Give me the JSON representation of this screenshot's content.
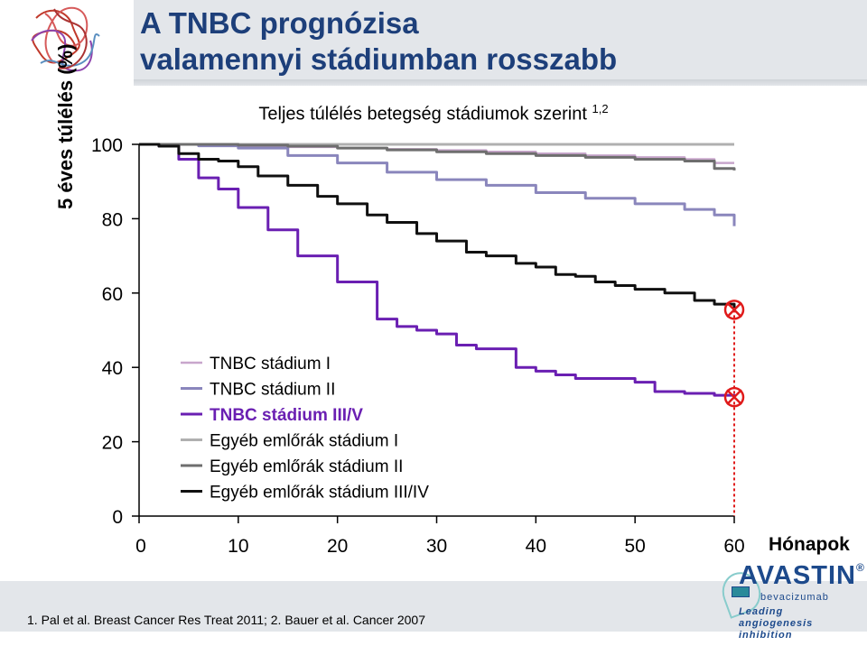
{
  "header": {
    "title_line1": "A TNBC prognózisa",
    "title_line2": "valamennyi stádiumban rosszabb"
  },
  "chart_data": {
    "type": "line",
    "title": "Teljes túlélés betegség stádiumok szerint",
    "title_sup": "1,2",
    "ylabel": "5 éves túlélés (%)",
    "xlabel": "Hónapok",
    "xlim": [
      0,
      60
    ],
    "ylim": [
      0,
      100
    ],
    "xticks": [
      0,
      10,
      20,
      30,
      40,
      50,
      60
    ],
    "yticks": [
      0,
      20,
      40,
      60,
      80,
      100
    ],
    "legend_position": "center-left",
    "series": [
      {
        "name": "TNBC stádium I",
        "color": "#c8a6cc",
        "width": 2.5,
        "x": [
          0,
          3,
          6,
          10,
          15,
          20,
          25,
          30,
          35,
          40,
          45,
          50,
          55,
          58,
          60
        ],
        "y": [
          100,
          100,
          99.7,
          99.5,
          99.3,
          99,
          98.7,
          98.4,
          98,
          97.5,
          97,
          96.5,
          96,
          95,
          95
        ]
      },
      {
        "name": "TNBC stádium II",
        "color": "#8a86bc",
        "width": 3,
        "x": [
          0,
          3,
          6,
          10,
          15,
          20,
          25,
          30,
          35,
          40,
          45,
          50,
          55,
          58,
          60
        ],
        "y": [
          100,
          100,
          99.6,
          99,
          97,
          95,
          92.5,
          90.5,
          89,
          87,
          85.5,
          84,
          82.5,
          81,
          78
        ]
      },
      {
        "name": "TNBC stádium III/V",
        "color": "#6a1fb2",
        "width": 3,
        "x": [
          0,
          2,
          4,
          6,
          8,
          10,
          13,
          16,
          20,
          24,
          26,
          28,
          30,
          32,
          34,
          38,
          40,
          42,
          44,
          46,
          48,
          50,
          52,
          55,
          58,
          60
        ],
        "y": [
          100,
          99.5,
          96,
          91,
          88,
          83,
          77,
          70,
          63,
          53,
          51,
          50,
          49,
          46,
          45,
          40,
          39,
          38,
          37,
          37,
          37,
          36,
          33.5,
          33,
          32.5,
          32
        ]
      },
      {
        "name": "Egyéb emlőrák stádium I",
        "color": "#b0b0b0",
        "width": 3,
        "x": [
          0,
          10,
          20,
          30,
          40,
          50,
          60
        ],
        "y": [
          100,
          100,
          100,
          100,
          100,
          100,
          100
        ]
      },
      {
        "name": "Egyéb emlőrák stádium II",
        "color": "#6e6e6e",
        "width": 3,
        "x": [
          0,
          3,
          6,
          10,
          15,
          20,
          25,
          30,
          35,
          40,
          45,
          50,
          55,
          58,
          60
        ],
        "y": [
          100,
          100,
          100,
          99.8,
          99.5,
          99,
          98.5,
          98,
          97.5,
          97,
          96.5,
          96,
          95.5,
          93.5,
          93
        ]
      },
      {
        "name": "Egyéb emlőrák stádium III/IV",
        "color": "#101010",
        "width": 3,
        "x": [
          0,
          2,
          4,
          6,
          8,
          10,
          12,
          15,
          18,
          20,
          23,
          25,
          28,
          30,
          33,
          35,
          38,
          40,
          42,
          44,
          46,
          48,
          50,
          53,
          56,
          58,
          60
        ],
        "y": [
          100,
          99.5,
          97.5,
          96,
          95.5,
          94,
          91.5,
          89,
          86,
          84,
          81,
          79,
          76,
          74,
          71,
          70,
          68,
          67,
          65,
          64.5,
          63,
          62,
          61,
          60,
          58,
          57,
          56
        ]
      }
    ],
    "endpoint_markers": [
      {
        "x": 60,
        "y": 55.5,
        "color": "#e01a1a"
      },
      {
        "x": 60,
        "y": 32,
        "color": "#e01a1a"
      }
    ],
    "vertical_dashed_line": {
      "x": 60,
      "color": "#e01a1a"
    }
  },
  "references": "1. Pal et al. Breast Cancer Res Treat 2011; 2. Bauer et al. Cancer 2007",
  "brand": {
    "name": "AVASTIN",
    "registered": "®",
    "subname": "bevacizumab",
    "tagline_1": "Leading angiogenesis",
    "tagline_2": "inhibition"
  }
}
